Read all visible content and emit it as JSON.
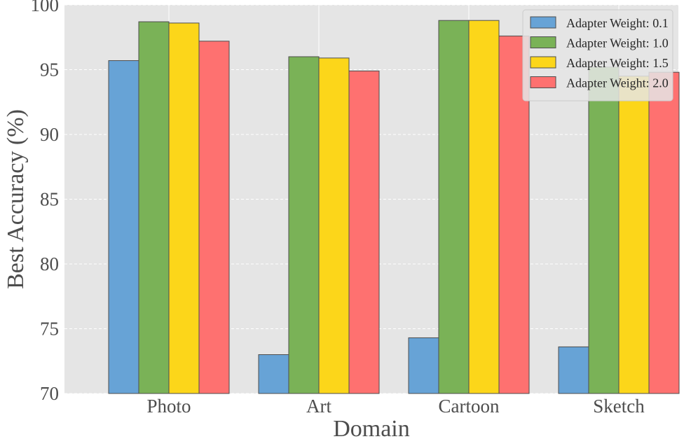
{
  "chart_data": {
    "type": "bar",
    "title": "",
    "xlabel": "Domain",
    "ylabel": "Best Accuracy (%)",
    "ylim": [
      70,
      100
    ],
    "yticks": [
      "70",
      "75",
      "80",
      "85",
      "90",
      "95",
      "100"
    ],
    "categories": [
      "Photo",
      "Art",
      "Cartoon",
      "Sketch"
    ],
    "series": [
      {
        "name": "Adapter Weight: 0.1",
        "color": "#67a3d6",
        "values": [
          95.7,
          73.0,
          74.3,
          73.6
        ]
      },
      {
        "name": "Adapter Weight: 1.0",
        "color": "#7ab257",
        "values": [
          98.7,
          96.0,
          98.8,
          95.2
        ]
      },
      {
        "name": "Adapter Weight: 1.5",
        "color": "#fcd61a",
        "values": [
          98.6,
          95.9,
          98.8,
          94.5
        ]
      },
      {
        "name": "Adapter Weight: 2.0",
        "color": "#fe7170",
        "values": [
          97.2,
          94.9,
          97.6,
          94.8
        ]
      }
    ],
    "grid": true,
    "legend_position": "top-right",
    "background_color": "#e5e5e5",
    "gridline_color": "#ffffff",
    "bar_edge_color": "#4d4d4d"
  }
}
